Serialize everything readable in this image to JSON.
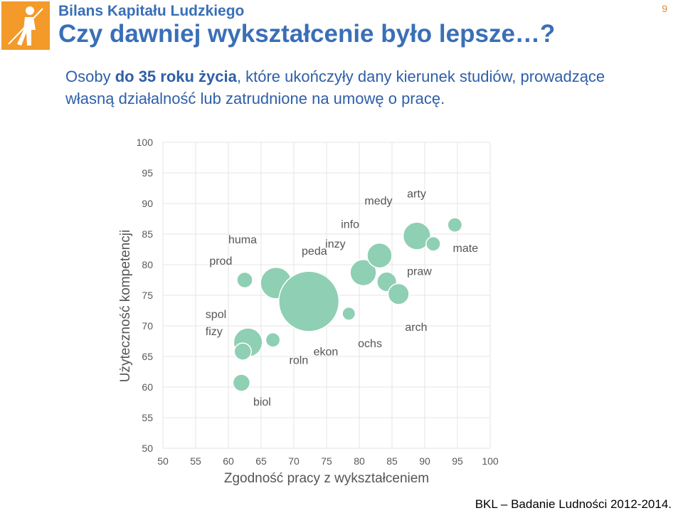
{
  "header": {
    "brand": "Bilans Kapitału Ludzkiego",
    "title": "Czy dawniej wykształcenie było lepsze…?",
    "page_number": "9"
  },
  "subtitle": {
    "part1": "Osoby ",
    "bold": "do 35 roku życia",
    "part2": ", które ukończyły dany kierunek studiów, prowadzące własną działalność lub zatrudnione na umowę o pracę."
  },
  "footer": {
    "source": "BKL – Badanie Ludności 2012-2014."
  },
  "colors": {
    "accent": "#3a6fb7",
    "bubble_fill": "#8fcfb3",
    "bubble_stroke": "#ffffff",
    "gridline": "#e4e4e4",
    "logo_orange": "#f39a2a"
  },
  "chart_data": {
    "type": "scatter",
    "variant": "bubble",
    "xlabel": "Zgodność pracy z wykształceniem",
    "ylabel": "Użyteczność kompetencji",
    "xlim": [
      50,
      100
    ],
    "ylim": [
      50,
      100
    ],
    "xticks": [
      "50",
      "55",
      "60",
      "65",
      "70",
      "75",
      "80",
      "85",
      "90",
      "95",
      "100"
    ],
    "yticks": [
      "50",
      "55",
      "60",
      "65",
      "70",
      "75",
      "80",
      "85",
      "90",
      "95",
      "100"
    ],
    "grid": true,
    "legend": "none",
    "points": [
      {
        "x": 62.5,
        "y": 77.5,
        "r": 1.2
      },
      {
        "x": 67.3,
        "y": 77.0,
        "r": 2.4
      },
      {
        "x": 63.0,
        "y": 67.3,
        "r": 2.2
      },
      {
        "x": 62.2,
        "y": 65.8,
        "r": 1.3
      },
      {
        "x": 66.8,
        "y": 67.7,
        "r": 1.1
      },
      {
        "x": 62.0,
        "y": 60.7,
        "r": 1.3
      },
      {
        "x": 73.3,
        "y": 75.6,
        "r": 3.0
      },
      {
        "x": 72.3,
        "y": 74.0,
        "r": 4.6
      },
      {
        "x": 78.4,
        "y": 72.0,
        "r": 1.0
      },
      {
        "x": 80.6,
        "y": 78.7,
        "r": 2.0
      },
      {
        "x": 83.1,
        "y": 81.5,
        "r": 1.9
      },
      {
        "x": 84.2,
        "y": 77.2,
        "r": 1.5
      },
      {
        "x": 86.0,
        "y": 75.2,
        "r": 1.6
      },
      {
        "x": 88.8,
        "y": 84.7,
        "r": 2.1
      },
      {
        "x": 91.3,
        "y": 83.4,
        "r": 1.1
      },
      {
        "x": 94.6,
        "y": 86.5,
        "r": 1.1
      }
    ],
    "annotations": [
      {
        "label": "huma",
        "x": 60.0,
        "y": 83.5
      },
      {
        "label": "prod",
        "x": 57.1,
        "y": 80.0
      },
      {
        "label": "spol",
        "x": 56.5,
        "y": 71.3
      },
      {
        "label": "fizy",
        "x": 56.5,
        "y": 68.5
      },
      {
        "label": "biol",
        "x": 63.8,
        "y": 57.0
      },
      {
        "label": "roln",
        "x": 69.3,
        "y": 63.8
      },
      {
        "label": "peda",
        "x": 71.2,
        "y": 81.6
      },
      {
        "label": "inzy",
        "x": 74.8,
        "y": 82.8
      },
      {
        "label": "info",
        "x": 77.2,
        "y": 86.0
      },
      {
        "label": "medy",
        "x": 80.8,
        "y": 89.8
      },
      {
        "label": "arty",
        "x": 87.3,
        "y": 91.0
      },
      {
        "label": "mate",
        "x": 94.3,
        "y": 82.1
      },
      {
        "label": "praw",
        "x": 87.3,
        "y": 78.3
      },
      {
        "label": "arch",
        "x": 87.0,
        "y": 69.2
      },
      {
        "label": "ochs",
        "x": 79.8,
        "y": 66.5
      },
      {
        "label": "ekon",
        "x": 73.0,
        "y": 65.2
      }
    ]
  }
}
